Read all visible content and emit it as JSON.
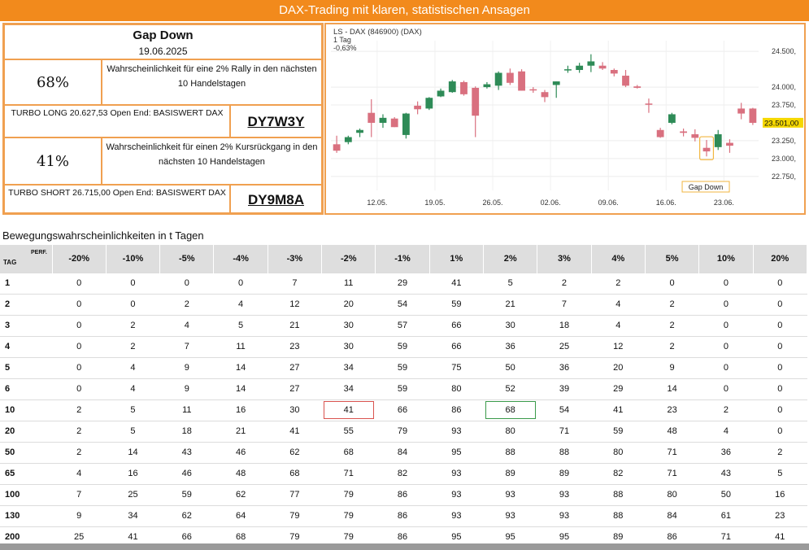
{
  "banner": "DAX-Trading mit klaren, statistischen Ansagen",
  "info": {
    "title": "Gap Down",
    "date": "19.06.2025",
    "rally_pct": "68%",
    "rally_text": "Wahrscheinlichkeit für eine 2% Rally in den nächsten 10 Handelstagen",
    "turbo_long": "TURBO LONG 20.627,53 Open End: BASISWERT DAX",
    "turbo_long_code": "DY7W3Y",
    "drop_pct": "41%",
    "drop_text": "Wahrscheinlichkeit für einen 2% Kursrückgang in den nächsten 10 Handelstagen",
    "turbo_short": "TURBO SHORT 26.715,00 Open End: BASISWERT DAX",
    "turbo_short_code": "DY9M8A"
  },
  "chart_data": {
    "type": "candlestick",
    "title": "LS - DAX (846900) (DAX)",
    "subtitle1": "1 Tag",
    "subtitle2": "-0,63%",
    "ylim": [
      22600,
      24650
    ],
    "yticks": [
      {
        "v": 24500,
        "label": "24.500,"
      },
      {
        "v": 24000,
        "label": "24.000,"
      },
      {
        "v": 23750,
        "label": "23.750,"
      },
      {
        "v": 23250,
        "label": "23.250,"
      },
      {
        "v": 23000,
        "label": "23.000,"
      },
      {
        "v": 22750,
        "label": "22.750,"
      }
    ],
    "xticks": [
      {
        "i": 3.5,
        "label": "12.05."
      },
      {
        "i": 8.5,
        "label": "19.05."
      },
      {
        "i": 13.5,
        "label": "26.05."
      },
      {
        "i": 18.5,
        "label": "02.06."
      },
      {
        "i": 23.5,
        "label": "09.06."
      },
      {
        "i": 28.5,
        "label": "16.06."
      },
      {
        "i": 33.5,
        "label": "23.06."
      }
    ],
    "last_price": "23.501,00",
    "last_value": 23501,
    "annotation": "Gap Down",
    "annotation_index": 32,
    "up_color": "#2e8b57",
    "down_color": "#d9707f",
    "candles": [
      {
        "o": 23200,
        "h": 23320,
        "l": 23080,
        "c": 23110
      },
      {
        "o": 23230,
        "h": 23320,
        "l": 23200,
        "c": 23300
      },
      {
        "o": 23360,
        "h": 23420,
        "l": 23300,
        "c": 23400
      },
      {
        "o": 23640,
        "h": 23830,
        "l": 23300,
        "c": 23500
      },
      {
        "o": 23500,
        "h": 23620,
        "l": 23430,
        "c": 23570
      },
      {
        "o": 23560,
        "h": 23580,
        "l": 23440,
        "c": 23440
      },
      {
        "o": 23330,
        "h": 23640,
        "l": 23280,
        "c": 23630
      },
      {
        "o": 23740,
        "h": 23800,
        "l": 23620,
        "c": 23690
      },
      {
        "o": 23700,
        "h": 23860,
        "l": 23680,
        "c": 23850
      },
      {
        "o": 23870,
        "h": 23980,
        "l": 23860,
        "c": 23950
      },
      {
        "o": 23930,
        "h": 24100,
        "l": 23920,
        "c": 24080
      },
      {
        "o": 24070,
        "h": 24090,
        "l": 23880,
        "c": 23900
      },
      {
        "o": 23990,
        "h": 24010,
        "l": 23300,
        "c": 23600
      },
      {
        "o": 24000,
        "h": 24070,
        "l": 23980,
        "c": 24040
      },
      {
        "o": 24020,
        "h": 24220,
        "l": 23960,
        "c": 24200
      },
      {
        "o": 24200,
        "h": 24260,
        "l": 24030,
        "c": 24060
      },
      {
        "o": 24220,
        "h": 24250,
        "l": 23950,
        "c": 23950
      },
      {
        "o": 23970,
        "h": 24000,
        "l": 23920,
        "c": 23960
      },
      {
        "o": 23930,
        "h": 23960,
        "l": 23790,
        "c": 23860
      },
      {
        "o": 24030,
        "h": 24080,
        "l": 23850,
        "c": 24080
      },
      {
        "o": 24240,
        "h": 24300,
        "l": 24200,
        "c": 24250
      },
      {
        "o": 24240,
        "h": 24340,
        "l": 24200,
        "c": 24300
      },
      {
        "o": 24300,
        "h": 24460,
        "l": 24210,
        "c": 24360
      },
      {
        "o": 24300,
        "h": 24350,
        "l": 24240,
        "c": 24260
      },
      {
        "o": 24240,
        "h": 24260,
        "l": 24150,
        "c": 24190
      },
      {
        "o": 24160,
        "h": 24240,
        "l": 24000,
        "c": 24020
      },
      {
        "o": 24010,
        "h": 24030,
        "l": 23980,
        "c": 23990
      },
      {
        "o": 23770,
        "h": 23840,
        "l": 23640,
        "c": 23760
      },
      {
        "o": 23400,
        "h": 23430,
        "l": 23290,
        "c": 23300
      },
      {
        "o": 23500,
        "h": 23640,
        "l": 23480,
        "c": 23620
      },
      {
        "o": 23380,
        "h": 23420,
        "l": 23310,
        "c": 23360
      },
      {
        "o": 23340,
        "h": 23410,
        "l": 23240,
        "c": 23290
      },
      {
        "o": 23150,
        "h": 23260,
        "l": 23030,
        "c": 23100
      },
      {
        "o": 23160,
        "h": 23400,
        "l": 23120,
        "c": 23340
      },
      {
        "o": 23220,
        "h": 23270,
        "l": 23080,
        "c": 23180
      },
      {
        "o": 23700,
        "h": 23780,
        "l": 23550,
        "c": 23630
      },
      {
        "o": 23700,
        "h": 23710,
        "l": 23470,
        "c": 23500
      }
    ]
  },
  "table": {
    "section_title": "Bewegungswahrscheinlichkeiten in t Tagen",
    "perf_label": "PERF.",
    "tag_label": "TAG",
    "headers": [
      "-20%",
      "-10%",
      "-5%",
      "-4%",
      "-3%",
      "-2%",
      "-1%",
      "1%",
      "2%",
      "3%",
      "4%",
      "5%",
      "10%",
      "20%"
    ],
    "rows": [
      {
        "t": "1",
        "v": [
          "0",
          "0",
          "0",
          "0",
          "7",
          "11",
          "29",
          "41",
          "5",
          "2",
          "2",
          "0",
          "0",
          "0"
        ]
      },
      {
        "t": "2",
        "v": [
          "0",
          "0",
          "2",
          "4",
          "12",
          "20",
          "54",
          "59",
          "21",
          "7",
          "4",
          "2",
          "0",
          "0"
        ]
      },
      {
        "t": "3",
        "v": [
          "0",
          "2",
          "4",
          "5",
          "21",
          "30",
          "57",
          "66",
          "30",
          "18",
          "4",
          "2",
          "0",
          "0"
        ]
      },
      {
        "t": "4",
        "v": [
          "0",
          "2",
          "7",
          "11",
          "23",
          "30",
          "59",
          "66",
          "36",
          "25",
          "12",
          "2",
          "0",
          "0"
        ]
      },
      {
        "t": "5",
        "v": [
          "0",
          "4",
          "9",
          "14",
          "27",
          "34",
          "59",
          "75",
          "50",
          "36",
          "20",
          "9",
          "0",
          "0"
        ]
      },
      {
        "t": "6",
        "v": [
          "0",
          "4",
          "9",
          "14",
          "27",
          "34",
          "59",
          "80",
          "52",
          "39",
          "29",
          "14",
          "0",
          "0"
        ]
      },
      {
        "t": "10",
        "v": [
          "2",
          "5",
          "11",
          "16",
          "30",
          "41",
          "66",
          "86",
          "68",
          "54",
          "41",
          "23",
          "2",
          "0"
        ]
      },
      {
        "t": "20",
        "v": [
          "2",
          "5",
          "18",
          "21",
          "41",
          "55",
          "79",
          "93",
          "80",
          "71",
          "59",
          "48",
          "4",
          "0"
        ]
      },
      {
        "t": "50",
        "v": [
          "2",
          "14",
          "43",
          "46",
          "62",
          "68",
          "84",
          "95",
          "88",
          "88",
          "80",
          "71",
          "36",
          "2"
        ]
      },
      {
        "t": "65",
        "v": [
          "4",
          "16",
          "46",
          "48",
          "68",
          "71",
          "82",
          "93",
          "89",
          "89",
          "82",
          "71",
          "43",
          "5"
        ]
      },
      {
        "t": "100",
        "v": [
          "7",
          "25",
          "59",
          "62",
          "77",
          "79",
          "86",
          "93",
          "93",
          "93",
          "88",
          "80",
          "50",
          "16"
        ]
      },
      {
        "t": "130",
        "v": [
          "9",
          "34",
          "62",
          "64",
          "79",
          "79",
          "86",
          "93",
          "93",
          "93",
          "88",
          "84",
          "61",
          "23"
        ]
      },
      {
        "t": "200",
        "v": [
          "25",
          "41",
          "66",
          "68",
          "79",
          "79",
          "86",
          "95",
          "95",
          "95",
          "89",
          "86",
          "71",
          "41"
        ]
      }
    ]
  }
}
